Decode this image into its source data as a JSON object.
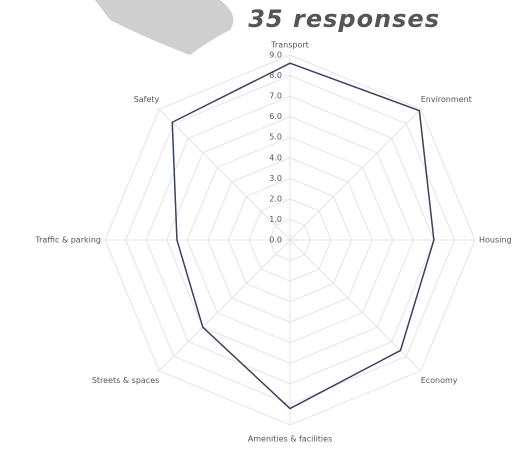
{
  "chart_data": {
    "type": "radar",
    "title": "35 responses",
    "title_color": "#c0655f",
    "categories": [
      "Transport",
      "Environment",
      "Housing",
      "Economy",
      "Amenities & facilities",
      "Streets & spaces",
      "Traffic & parking",
      "Safety"
    ],
    "series": [
      {
        "color": "#3b4160",
        "values": [
          8.6,
          8.9,
          7.0,
          7.6,
          8.2,
          6.0,
          5.5,
          8.1
        ]
      }
    ],
    "ylim": [
      0,
      9
    ],
    "yticks": [
      {
        "value": 0,
        "label": "0.0"
      },
      {
        "value": 1,
        "label": "1.0"
      },
      {
        "value": 2,
        "label": "2.0"
      },
      {
        "value": 3,
        "label": "3.0"
      },
      {
        "value": 4,
        "label": "4.0"
      },
      {
        "value": 5,
        "label": "5.0"
      },
      {
        "value": 6,
        "label": "6.0"
      },
      {
        "value": 7,
        "label": "7.0"
      },
      {
        "value": 8,
        "label": "8.0"
      },
      {
        "value": 9,
        "label": "9.0"
      }
    ],
    "grid": true
  }
}
